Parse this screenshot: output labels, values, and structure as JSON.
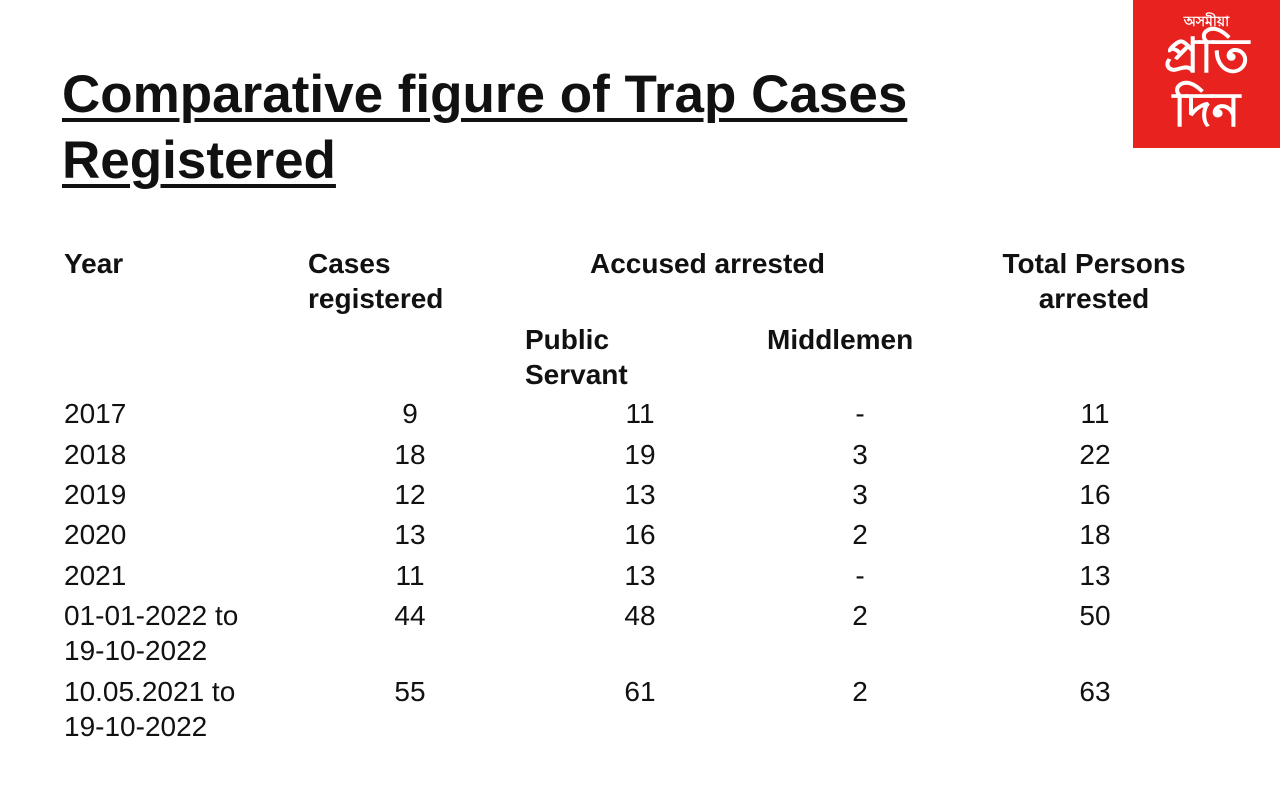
{
  "title": "Comparative figure of Trap Cases Registered",
  "logo": {
    "small_text": "অসমীয়া",
    "big_text": "প্রতি\nদিন"
  },
  "table": {
    "headers": {
      "year": "Year",
      "cases": "Cases\nregistered",
      "accused": "Accused arrested",
      "public_servant": "Public\nServant",
      "middlemen": "Middlemen",
      "total": "Total Persons\narrested"
    },
    "rows": [
      {
        "year": "2017",
        "cases": "9",
        "public_servant": "11",
        "middlemen": "-",
        "total": "11"
      },
      {
        "year": "2018",
        "cases": "18",
        "public_servant": "19",
        "middlemen": "3",
        "total": "22"
      },
      {
        "year": "2019",
        "cases": "12",
        "public_servant": "13",
        "middlemen": "3",
        "total": "16"
      },
      {
        "year": "2020",
        "cases": "13",
        "public_servant": "16",
        "middlemen": "2",
        "total": "18"
      },
      {
        "year": "2021",
        "cases": "11",
        "public_servant": "13",
        "middlemen": "-",
        "total": "13"
      },
      {
        "year": "01-01-2022 to\n19-10-2022",
        "cases": "44",
        "public_servant": "48",
        "middlemen": "2",
        "total": "50"
      },
      {
        "year": "10.05.2021 to\n19-10-2022",
        "cases": "55",
        "public_servant": "61",
        "middlemen": "2",
        "total": "63"
      }
    ]
  },
  "colors": {
    "logo_bg": "#e8231f",
    "text": "#111111"
  }
}
